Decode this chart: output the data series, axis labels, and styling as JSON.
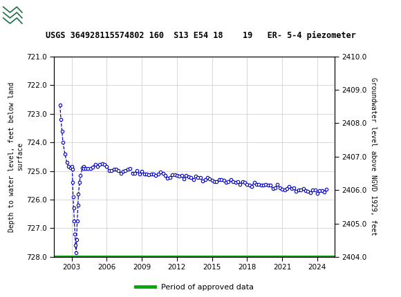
{
  "title": "USGS 364928115574802 160  S13 E54 18    19   ER- 5-4 piezometer",
  "ylabel_left": "Depth to water level, feet below land\nsurface",
  "ylabel_right": "Groundwater level above NGVD 1929, feet",
  "ylim_left": [
    728.0,
    721.0
  ],
  "ylim_right": [
    2404.0,
    2410.0
  ],
  "yticks_left": [
    721.0,
    722.0,
    723.0,
    724.0,
    725.0,
    726.0,
    727.0,
    728.0
  ],
  "yticks_right": [
    2404.0,
    2405.0,
    2406.0,
    2407.0,
    2408.0,
    2409.0,
    2410.0
  ],
  "xlim": [
    2001.5,
    2025.5
  ],
  "xticks": [
    2003,
    2006,
    2009,
    2012,
    2015,
    2018,
    2021,
    2024
  ],
  "header_color": "#1a7042",
  "legend_label": "Period of approved data",
  "legend_color": "#00aa00",
  "line_color": "#0000cc",
  "background_color": "#ffffff",
  "plot_bg_color": "#ffffff",
  "grid_color": "#c8c8c8",
  "usgs_text": "USGS"
}
